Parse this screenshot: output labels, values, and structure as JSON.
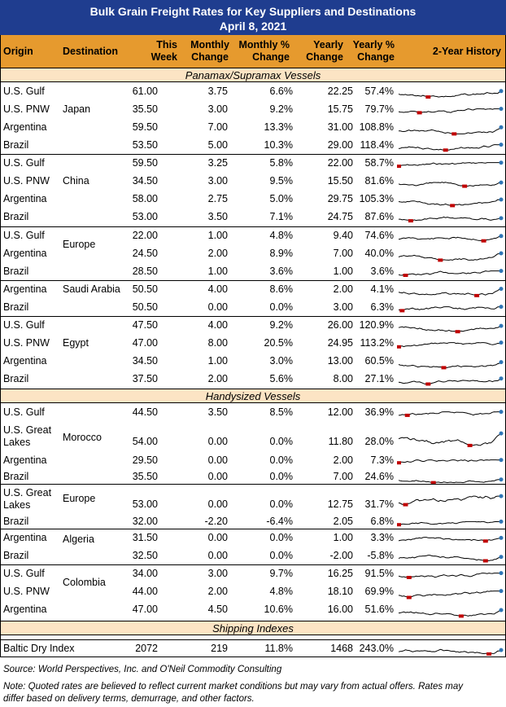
{
  "title": "Bulk Grain Freight Rates for Key Suppliers and Destinations",
  "date": "April 8, 2021",
  "columns": {
    "origin": "Origin",
    "destination": "Destination",
    "this_week_1": "This",
    "this_week_2": "Week",
    "monthly_change_1": "Monthly",
    "monthly_change_2": "Change",
    "monthly_pct_1": "Monthly %",
    "monthly_pct_2": "Change",
    "yearly_change_1": "Yearly",
    "yearly_change_2": "Change",
    "yearly_pct_1": "Yearly %",
    "yearly_pct_2": "Change",
    "history": "2-Year History"
  },
  "sections": {
    "panamax": "Panamax/Supramax Vessels",
    "handysize": "Handysized Vessels",
    "indexes": "Shipping Indexes"
  },
  "rows": [
    {
      "o1": "U.S. Gulf",
      "o2": "",
      "w": "61.00",
      "mc": "3.75",
      "mp": "6.6%",
      "yc": "22.25",
      "yp": "57.4%"
    },
    {
      "o1": "U.S. PNW",
      "o2": "",
      "w": "35.50",
      "mc": "3.00",
      "mp": "9.2%",
      "yc": "15.75",
      "yp": "79.7%"
    },
    {
      "o1": "Argentina",
      "o2": "",
      "w": "59.50",
      "mc": "7.00",
      "mp": "13.3%",
      "yc": "31.00",
      "yp": "108.8%"
    },
    {
      "o1": "Brazil",
      "o2": "",
      "w": "53.50",
      "mc": "5.00",
      "mp": "10.3%",
      "yc": "29.00",
      "yp": "118.4%"
    },
    {
      "o1": "U.S. Gulf",
      "o2": "",
      "w": "59.50",
      "mc": "3.25",
      "mp": "5.8%",
      "yc": "22.00",
      "yp": "58.7%"
    },
    {
      "o1": "U.S. PNW",
      "o2": "",
      "w": "34.50",
      "mc": "3.00",
      "mp": "9.5%",
      "yc": "15.50",
      "yp": "81.6%"
    },
    {
      "o1": "Argentina",
      "o2": "",
      "w": "58.00",
      "mc": "2.75",
      "mp": "5.0%",
      "yc": "29.75",
      "yp": "105.3%"
    },
    {
      "o1": "Brazil",
      "o2": "",
      "w": "53.00",
      "mc": "3.50",
      "mp": "7.1%",
      "yc": "24.75",
      "yp": "87.6%"
    },
    {
      "o1": "U.S. Gulf",
      "o2": "",
      "w": "22.00",
      "mc": "1.00",
      "mp": "4.8%",
      "yc": "9.40",
      "yp": "74.6%"
    },
    {
      "o1": "Argentina",
      "o2": "",
      "w": "24.50",
      "mc": "2.00",
      "mp": "8.9%",
      "yc": "7.00",
      "yp": "40.0%"
    },
    {
      "o1": "Brazil",
      "o2": "",
      "w": "28.50",
      "mc": "1.00",
      "mp": "3.6%",
      "yc": "1.00",
      "yp": "3.6%"
    },
    {
      "o1": "Argentina",
      "o2": "",
      "w": "50.50",
      "mc": "4.00",
      "mp": "8.6%",
      "yc": "2.00",
      "yp": "4.1%"
    },
    {
      "o1": "Brazil",
      "o2": "",
      "w": "50.50",
      "mc": "0.00",
      "mp": "0.0%",
      "yc": "3.00",
      "yp": "6.3%"
    },
    {
      "o1": "U.S. Gulf",
      "o2": "",
      "w": "47.50",
      "mc": "4.00",
      "mp": "9.2%",
      "yc": "26.00",
      "yp": "120.9%"
    },
    {
      "o1": "U.S. PNW",
      "o2": "",
      "w": "47.00",
      "mc": "8.00",
      "mp": "20.5%",
      "yc": "24.95",
      "yp": "113.2%"
    },
    {
      "o1": "Argentina",
      "o2": "",
      "w": "34.50",
      "mc": "1.00",
      "mp": "3.0%",
      "yc": "13.00",
      "yp": "60.5%"
    },
    {
      "o1": "Brazil",
      "o2": "",
      "w": "37.50",
      "mc": "2.00",
      "mp": "5.6%",
      "yc": "8.00",
      "yp": "27.1%"
    },
    {
      "o1": "U.S. Gulf",
      "o2": "",
      "w": "44.50",
      "mc": "3.50",
      "mp": "8.5%",
      "yc": "12.00",
      "yp": "36.9%"
    },
    {
      "o1": "U.S. Great",
      "o2": "Lakes",
      "w": "54.00",
      "mc": "0.00",
      "mp": "0.0%",
      "yc": "11.80",
      "yp": "28.0%"
    },
    {
      "o1": "Argentina",
      "o2": "",
      "w": "29.50",
      "mc": "0.00",
      "mp": "0.0%",
      "yc": "2.00",
      "yp": "7.3%"
    },
    {
      "o1": "Brazil",
      "o2": "",
      "w": "35.50",
      "mc": "0.00",
      "mp": "0.0%",
      "yc": "7.00",
      "yp": "24.6%"
    },
    {
      "o1": "U.S. Great",
      "o2": "Lakes",
      "w": "53.00",
      "mc": "0.00",
      "mp": "0.0%",
      "yc": "12.75",
      "yp": "31.7%"
    },
    {
      "o1": "Brazil",
      "o2": "",
      "w": "32.00",
      "mc": "-2.20",
      "mp": "-6.4%",
      "yc": "2.05",
      "yp": "6.8%"
    },
    {
      "o1": "Argentina",
      "o2": "",
      "w": "31.50",
      "mc": "0.00",
      "mp": "0.0%",
      "yc": "1.00",
      "yp": "3.3%"
    },
    {
      "o1": "Brazil",
      "o2": "",
      "w": "32.50",
      "mc": "0.00",
      "mp": "0.0%",
      "yc": "-2.00",
      "yp": "-5.8%"
    },
    {
      "o1": "U.S. Gulf",
      "o2": "",
      "w": "34.00",
      "mc": "3.00",
      "mp": "9.7%",
      "yc": "16.25",
      "yp": "91.5%"
    },
    {
      "o1": "U.S. PNW",
      "o2": "",
      "w": "44.00",
      "mc": "2.00",
      "mp": "4.8%",
      "yc": "18.10",
      "yp": "69.9%"
    },
    {
      "o1": "Argentina",
      "o2": "",
      "w": "47.00",
      "mc": "4.50",
      "mp": "10.6%",
      "yc": "16.00",
      "yp": "51.6%"
    },
    {
      "o1": "Baltic Dry Index",
      "o2": "",
      "w": "2072",
      "mc": "219",
      "mp": "11.8%",
      "yc": "1468",
      "yp": "243.0%"
    }
  ],
  "destinations": [
    "Japan",
    "China",
    "Europe",
    "Saudi Arabia",
    "Egypt",
    "Morocco",
    "Europe",
    "Algeria",
    "Colombia"
  ],
  "footer": {
    "source": "Source: World Perspectives, Inc. and O'Neil Commodity Consulting",
    "note": "Note: Quoted rates are believed to reflect current market conditions but may vary from actual offers. Rates may",
    "note2": "differ based on delivery terms, demurrage, and other factors."
  },
  "colors": {
    "title_bg": "#1f3d8f",
    "header_bg": "#e69a2e",
    "section_bg": "#fce4c4",
    "high_marker": "#2e75b6",
    "low_marker": "#c00000"
  }
}
